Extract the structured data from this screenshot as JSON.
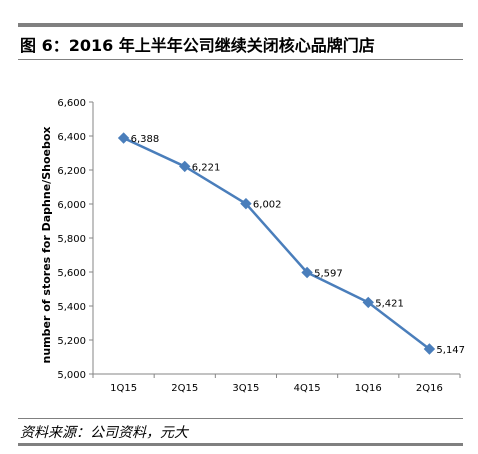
{
  "figure": {
    "title": "图 6：2016 年上半年公司继续关闭核心品牌门店",
    "source": "资料来源：公司资料，元大"
  },
  "colors": {
    "series": "#4a7ebb",
    "marker": "#4a7ebb",
    "axis": "#868686",
    "rule": "#808080"
  },
  "chart_data": {
    "type": "line",
    "categories": [
      "1Q15",
      "2Q15",
      "3Q15",
      "4Q15",
      "1Q16",
      "2Q16"
    ],
    "values": [
      6388,
      6221,
      6002,
      5597,
      5421,
      5147
    ],
    "data_labels": [
      "6,388",
      "6,221",
      "6,002",
      "5,597",
      "5,421",
      "5,147"
    ],
    "ylabel": "number of stores for Daphne/Shoebox",
    "xlabel": "",
    "ylim": [
      5000,
      6600
    ],
    "yticks": [
      5000,
      5200,
      5400,
      5600,
      5800,
      6000,
      6200,
      6400,
      6600
    ],
    "ytick_labels": [
      "5,000",
      "5,200",
      "5,400",
      "5,600",
      "5,800",
      "6,000",
      "6,200",
      "6,400",
      "6,600"
    ],
    "marker": "diamond",
    "grid": false,
    "legend": "none"
  }
}
